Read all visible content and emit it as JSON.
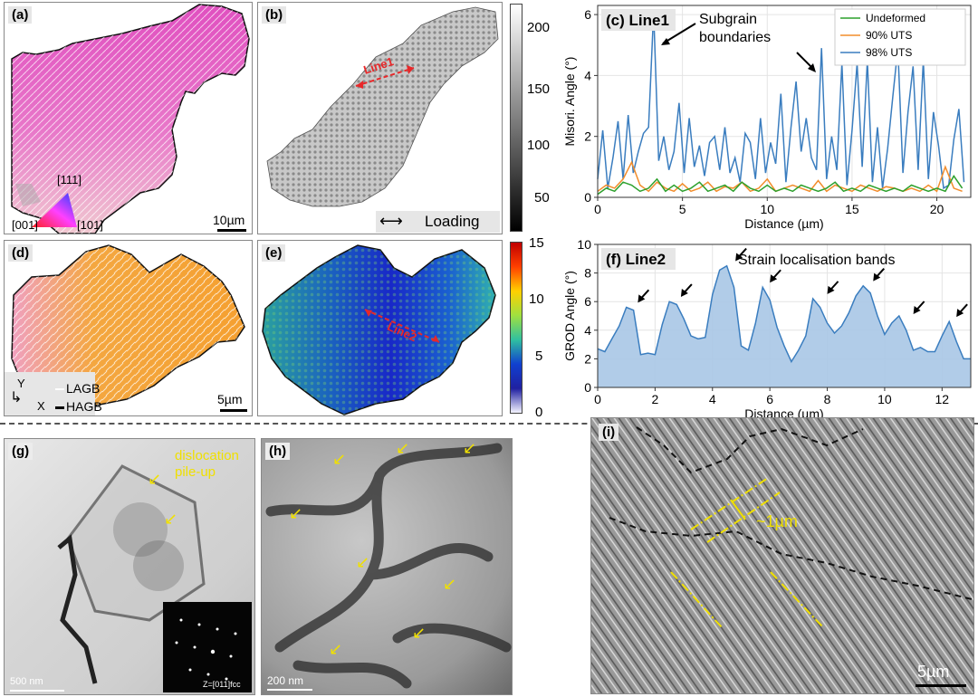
{
  "panels": {
    "a": {
      "label": "(a)",
      "scale": "10µm",
      "ipf": {
        "t111": "[111]",
        "t001": "[001]",
        "t101": "[101]"
      }
    },
    "b": {
      "label": "(b)",
      "line": "Line1",
      "loading": "Loading"
    },
    "c": {
      "label": "(c) Line1",
      "annotation": "Subgrain boundaries"
    },
    "d": {
      "label": "(d)",
      "scale": "5µm",
      "axis_y": "Y",
      "axis_x": "X",
      "legend_lagb": "LAGB",
      "legend_hagb": "HAGB"
    },
    "e": {
      "label": "(e)",
      "line": "Line2"
    },
    "f": {
      "label": "(f) Line2",
      "annotation": "Strain localisation bands"
    },
    "g": {
      "label": "(g)",
      "annotation": "dislocation pile-up",
      "scale": "500 nm",
      "zone_axis": "Z=[011]fcc"
    },
    "h": {
      "label": "(h)",
      "scale": "200 nm"
    },
    "i": {
      "label": "(i)",
      "spacing": "~1µm",
      "scale": "5µm"
    }
  },
  "colorbar_b": {
    "ticks": [
      "200",
      "150",
      "100",
      "50"
    ]
  },
  "colorbar_e": {
    "ticks": [
      "15",
      "10",
      "5",
      "0"
    ]
  },
  "chart_data": [
    {
      "type": "line",
      "title": "(c) Line1",
      "xlabel": "Distance (µm)",
      "ylabel": "Misori. Angle (°)",
      "xlim": [
        0,
        22
      ],
      "ylim": [
        0,
        6.3
      ],
      "xticks": [
        "0",
        "5",
        "10",
        "15",
        "20"
      ],
      "yticks": [
        "0",
        "2",
        "4",
        "6"
      ],
      "legend": [
        "Undeformed",
        "90% UTS",
        "98% UTS"
      ],
      "series": [
        {
          "name": "98% UTS",
          "color": "#3a7dbf",
          "x": [
            0,
            0.3,
            0.6,
            0.9,
            1.2,
            1.5,
            1.8,
            2.1,
            2.4,
            2.7,
            3.0,
            3.3,
            3.6,
            3.9,
            4.2,
            4.5,
            4.8,
            5.1,
            5.4,
            5.7,
            6.0,
            6.3,
            6.6,
            6.9,
            7.2,
            7.5,
            7.8,
            8.1,
            8.4,
            8.7,
            9.0,
            9.3,
            9.6,
            9.9,
            10.2,
            10.5,
            10.8,
            11.1,
            11.4,
            11.7,
            12.0,
            12.3,
            12.6,
            12.9,
            13.2,
            13.5,
            13.8,
            14.1,
            14.4,
            14.7,
            15.0,
            15.3,
            15.6,
            15.9,
            16.2,
            16.5,
            16.8,
            17.1,
            17.4,
            17.7,
            18.0,
            18.3,
            18.6,
            18.9,
            19.2,
            19.5,
            19.8,
            20.1,
            20.4,
            20.7,
            21.0,
            21.3,
            21.6
          ],
          "values": [
            0.6,
            2.2,
            0.3,
            1.3,
            2.5,
            0.6,
            2.7,
            0.8,
            1.5,
            2.1,
            2.3,
            6.1,
            1.2,
            2.0,
            0.9,
            1.5,
            3.1,
            0.8,
            2.6,
            1.0,
            1.7,
            0.7,
            1.8,
            2.0,
            0.9,
            2.3,
            0.8,
            1.3,
            0.5,
            2.1,
            1.8,
            0.6,
            2.6,
            0.8,
            1.8,
            1.1,
            3.4,
            0.5,
            2.3,
            3.8,
            1.5,
            2.6,
            1.3,
            0.9,
            4.9,
            0.6,
            2.0,
            0.9,
            4.4,
            0.4,
            2.2,
            4.4,
            1.0,
            4.5,
            0.5,
            2.3,
            0.3,
            1.6,
            3.3,
            4.9,
            0.8,
            2.8,
            4.3,
            0.9,
            4.5,
            0.6,
            2.8,
            1.7,
            0.3,
            0.4,
            1.9,
            2.9,
            0.5
          ]
        },
        {
          "name": "90% UTS",
          "color": "#f28d2c",
          "x": [
            0,
            0.5,
            1.0,
            1.5,
            2.0,
            2.5,
            3.0,
            3.5,
            4.0,
            4.5,
            5.0,
            5.5,
            6.0,
            6.5,
            7.0,
            7.5,
            8.0,
            8.5,
            9.0,
            9.5,
            10.0,
            10.5,
            11.0,
            11.5,
            12.0,
            12.5,
            13.0,
            13.5,
            14.0,
            14.5,
            15.0,
            15.5,
            16.0,
            16.5,
            17.0,
            17.5,
            18.0,
            18.5,
            19.0,
            19.5,
            20.0,
            20.5,
            21.0,
            21.5
          ],
          "values": [
            0.2,
            0.4,
            0.3,
            0.6,
            1.15,
            0.4,
            0.2,
            0.5,
            0.3,
            0.2,
            0.45,
            0.2,
            0.3,
            0.5,
            0.2,
            0.35,
            0.3,
            0.5,
            0.2,
            0.3,
            0.6,
            0.2,
            0.3,
            0.4,
            0.3,
            0.2,
            0.55,
            0.2,
            0.4,
            0.3,
            0.2,
            0.4,
            0.3,
            0.2,
            0.35,
            0.3,
            0.2,
            0.3,
            0.2,
            0.4,
            0.2,
            1.0,
            0.3,
            0.2
          ]
        },
        {
          "name": "Undeformed",
          "color": "#2ca02c",
          "x": [
            0,
            0.5,
            1.0,
            1.5,
            2.0,
            2.5,
            3.0,
            3.5,
            4.0,
            4.5,
            5.0,
            5.5,
            6.0,
            6.5,
            7.0,
            7.5,
            8.0,
            8.5,
            9.0,
            9.5,
            10.0,
            10.5,
            11.0,
            11.5,
            12.0,
            12.5,
            13.0,
            13.5,
            14.0,
            14.5,
            15.0,
            15.5,
            16.0,
            16.5,
            17.0,
            17.5,
            18.0,
            18.5,
            19.0,
            19.5,
            20.0,
            20.5,
            21.0,
            21.5
          ],
          "values": [
            0.1,
            0.3,
            0.2,
            0.5,
            0.4,
            0.2,
            0.3,
            0.6,
            0.2,
            0.4,
            0.2,
            0.3,
            0.5,
            0.2,
            0.3,
            0.4,
            0.2,
            0.5,
            0.3,
            0.2,
            0.4,
            0.2,
            0.3,
            0.2,
            0.4,
            0.3,
            0.2,
            0.3,
            0.5,
            0.2,
            0.3,
            0.2,
            0.4,
            0.3,
            0.2,
            0.3,
            0.2,
            0.4,
            0.3,
            0.2,
            0.3,
            0.2,
            0.7,
            0.3
          ]
        }
      ]
    },
    {
      "type": "area",
      "title": "(f) Line2",
      "xlabel": "Distance (µm)",
      "ylabel": "GROD Angle (°)",
      "xlim": [
        0,
        13
      ],
      "ylim": [
        0,
        10
      ],
      "xticks": [
        "0",
        "2",
        "4",
        "6",
        "8",
        "10",
        "12"
      ],
      "yticks": [
        "0",
        "2",
        "4",
        "6",
        "8",
        "10"
      ],
      "series": [
        {
          "name": "GROD",
          "color": "#3a7dbf",
          "x": [
            0,
            0.25,
            0.5,
            0.75,
            1.0,
            1.25,
            1.5,
            1.75,
            2.0,
            2.25,
            2.5,
            2.75,
            3.0,
            3.25,
            3.5,
            3.75,
            4.0,
            4.25,
            4.5,
            4.75,
            5.0,
            5.25,
            5.5,
            5.75,
            6.0,
            6.25,
            6.5,
            6.75,
            7.0,
            7.25,
            7.5,
            7.75,
            8.0,
            8.25,
            8.5,
            8.75,
            9.0,
            9.25,
            9.5,
            9.75,
            10.0,
            10.25,
            10.5,
            10.75,
            11.0,
            11.25,
            11.5,
            11.75,
            12.0,
            12.25,
            12.5,
            12.75,
            13.0
          ],
          "values": [
            2.7,
            2.5,
            3.4,
            4.3,
            5.6,
            5.4,
            2.3,
            2.4,
            2.3,
            4.4,
            6.0,
            5.8,
            4.8,
            3.6,
            3.4,
            3.5,
            6.5,
            8.2,
            8.5,
            7.0,
            2.9,
            2.6,
            4.5,
            7.0,
            6.1,
            4.2,
            2.9,
            1.8,
            2.6,
            3.6,
            6.2,
            5.6,
            4.5,
            3.8,
            4.3,
            5.2,
            6.4,
            7.1,
            6.6,
            5.0,
            3.7,
            4.5,
            5.0,
            4.0,
            2.6,
            2.8,
            2.5,
            2.5,
            3.6,
            4.6,
            3.2,
            2.0,
            2.0
          ]
        }
      ]
    }
  ]
}
